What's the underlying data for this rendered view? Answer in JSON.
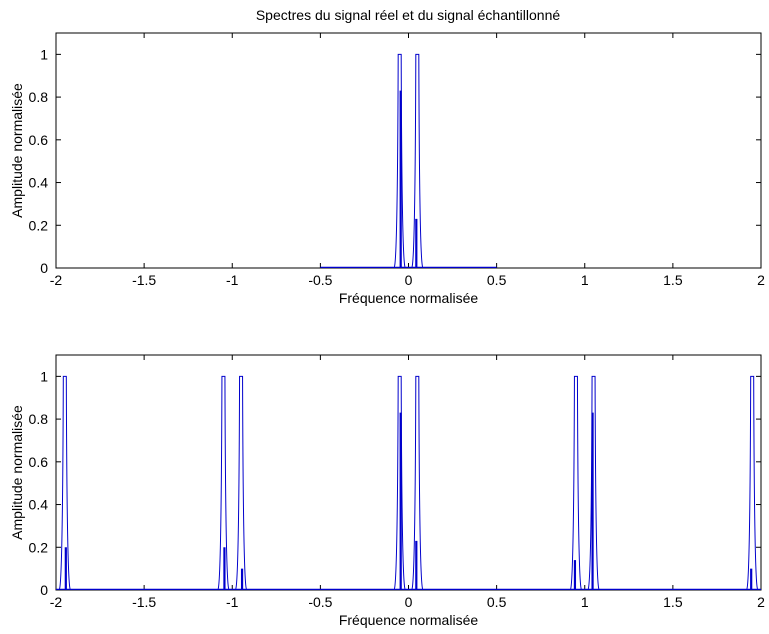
{
  "figure": {
    "title": "Spectres du signal réel et du signal échantillonné"
  },
  "chart_data": [
    {
      "type": "line",
      "xlabel": "Fréquence normalisée",
      "ylabel": "Amplitude normalisée",
      "xlim": [
        -2,
        2
      ],
      "ylim": [
        0,
        1.1
      ],
      "xticks": [
        "-2",
        "-1.5",
        "-1",
        "-0.5",
        "0",
        "0.5",
        "1",
        "1.5",
        "2"
      ],
      "xtick_values": [
        -2,
        -1.5,
        -1,
        -0.5,
        0,
        0.5,
        1,
        1.5,
        2
      ],
      "yticks": [
        "0",
        "0.2",
        "0.4",
        "0.6",
        "0.8",
        "1"
      ],
      "ytick_values": [
        0,
        0.2,
        0.4,
        0.6,
        0.8,
        1
      ],
      "grid": false,
      "line_color": "#0000cc",
      "signal_support": [
        -0.5,
        0.5
      ],
      "peaks": [
        {
          "freq": -0.05,
          "peak": 1.0,
          "inner": 0.83
        },
        {
          "freq": 0.05,
          "peak": 1.0,
          "inner": 0.23
        }
      ]
    },
    {
      "type": "line",
      "xlabel": "Fréquence normalisée",
      "ylabel": "Amplitude normalisée",
      "xlim": [
        -2,
        2
      ],
      "ylim": [
        0,
        1.1
      ],
      "xticks": [
        "-2",
        "-1.5",
        "-1",
        "-0.5",
        "0",
        "0.5",
        "1",
        "1.5",
        "2"
      ],
      "xtick_values": [
        -2,
        -1.5,
        -1,
        -0.5,
        0,
        0.5,
        1,
        1.5,
        2
      ],
      "yticks": [
        "0",
        "0.2",
        "0.4",
        "0.6",
        "0.8",
        "1"
      ],
      "ytick_values": [
        0,
        0.2,
        0.4,
        0.6,
        0.8,
        1
      ],
      "grid": false,
      "line_color": "#0000cc",
      "signal_support": [
        -2,
        2
      ],
      "peaks": [
        {
          "freq": -1.95,
          "peak": 1.0,
          "inner": 0.2
        },
        {
          "freq": -1.05,
          "peak": 1.0,
          "inner": 0.2
        },
        {
          "freq": -0.95,
          "peak": 1.0,
          "inner": 0.1
        },
        {
          "freq": -0.05,
          "peak": 1.0,
          "inner": 0.83
        },
        {
          "freq": 0.05,
          "peak": 1.0,
          "inner": 0.23
        },
        {
          "freq": 0.95,
          "peak": 1.0,
          "inner": 0.14
        },
        {
          "freq": 1.05,
          "peak": 1.0,
          "inner": 0.83
        },
        {
          "freq": 1.95,
          "peak": 1.0,
          "inner": 0.1
        }
      ]
    }
  ]
}
